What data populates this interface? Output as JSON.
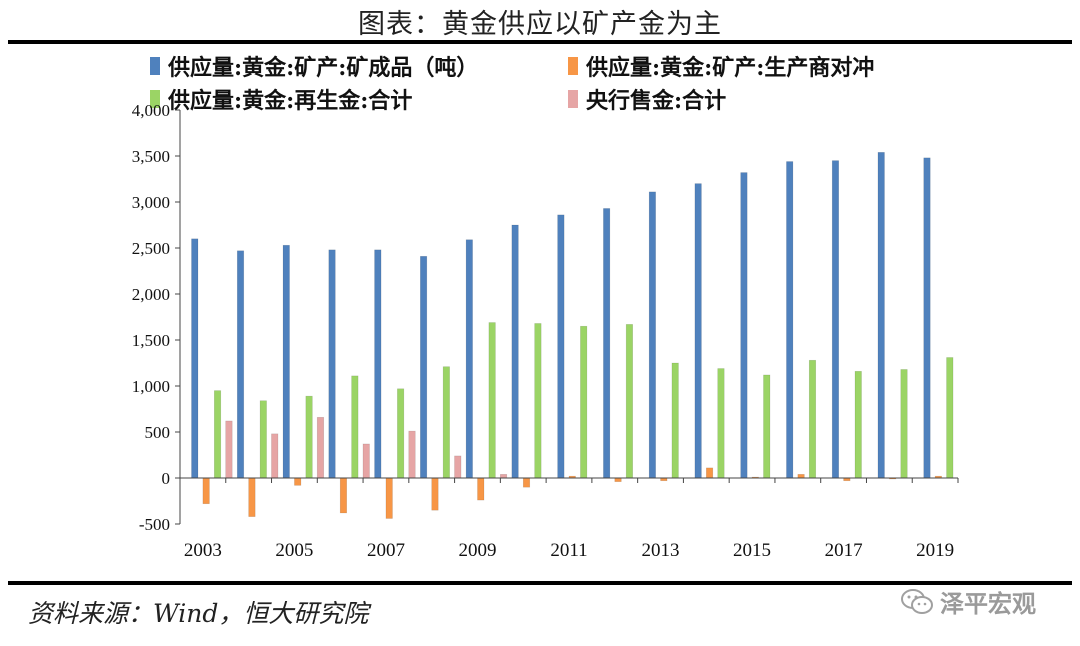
{
  "title": "图表：黄金供应以矿产金为主",
  "source": "资料来源：Wind，恒大研究院",
  "brand": "泽平宏观",
  "chart_data": {
    "type": "bar",
    "categories": [
      "2003",
      "2004",
      "2005",
      "2006",
      "2007",
      "2008",
      "2009",
      "2010",
      "2011",
      "2012",
      "2013",
      "2014",
      "2015",
      "2016",
      "2017",
      "2018",
      "2019"
    ],
    "xtick_labels": [
      "2003",
      "2005",
      "2007",
      "2009",
      "2011",
      "2013",
      "2015",
      "2017",
      "2019"
    ],
    "ylim": [
      -500,
      4000
    ],
    "yticks": [
      -500,
      0,
      500,
      1000,
      1500,
      2000,
      2500,
      3000,
      3500,
      4000
    ],
    "ytick_labels": [
      "-500",
      "0",
      "500",
      "1,000",
      "1,500",
      "2,000",
      "2,500",
      "3,000",
      "3,500",
      "4,000"
    ],
    "grid": false,
    "legend_position": "top",
    "series": [
      {
        "name": "供应量:黄金:矿产:矿成品（吨）",
        "color": "#4f81bd",
        "values": [
          2600,
          2470,
          2530,
          2480,
          2480,
          2410,
          2590,
          2750,
          2860,
          2930,
          3110,
          3200,
          3320,
          3440,
          3450,
          3540,
          3480
        ]
      },
      {
        "name": "供应量:黄金:矿产:生产商对冲",
        "color": "#f79646",
        "values": [
          -280,
          -420,
          -80,
          -380,
          -440,
          -350,
          -240,
          -100,
          20,
          -40,
          -30,
          110,
          10,
          40,
          -30,
          -10,
          20
        ]
      },
      {
        "name": "供应量:黄金:再生金:合计",
        "color": "#9bd465",
        "values": [
          950,
          840,
          890,
          1110,
          970,
          1210,
          1690,
          1680,
          1650,
          1670,
          1250,
          1190,
          1120,
          1280,
          1160,
          1180,
          1310
        ]
      },
      {
        "name": "央行售金:合计",
        "color": "#e6a5a5",
        "values": [
          620,
          480,
          660,
          370,
          510,
          240,
          40,
          0,
          0,
          0,
          0,
          0,
          0,
          0,
          0,
          0,
          0
        ]
      }
    ]
  }
}
